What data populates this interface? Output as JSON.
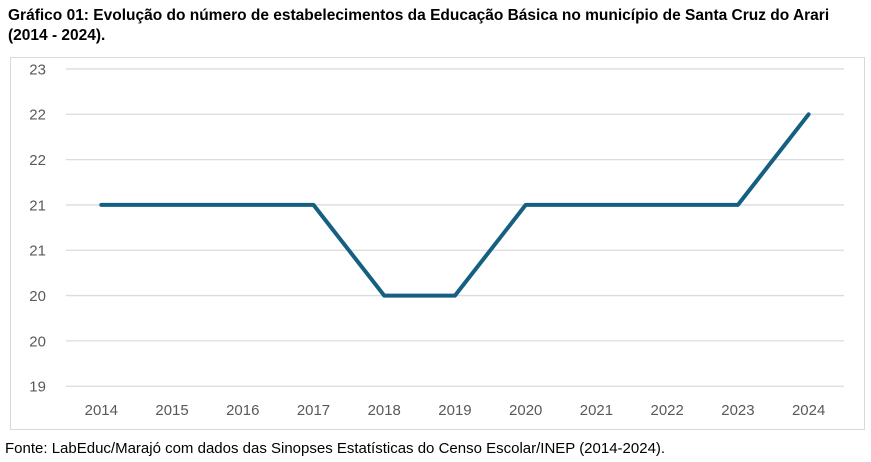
{
  "title": "Gráfico 01: Evolução do número de estabelecimentos da Educação Básica no município de Santa Cruz do Arari (2014 - 2024).",
  "source": "Fonte: LabEduc/Marajó com dados das Sinopses Estatísticas do Censo Escolar/INEP (2014-2024).",
  "colors": {
    "line": "#156082",
    "gridline": "#dcdcdc",
    "axis_text": "#595959",
    "frame_border": "#d9d9d9",
    "title_text": "#000000"
  },
  "chart_data": {
    "type": "line",
    "x": [
      "2014",
      "2015",
      "2016",
      "2017",
      "2018",
      "2019",
      "2020",
      "2021",
      "2022",
      "2023",
      "2024"
    ],
    "values": [
      21,
      21,
      21,
      21,
      20,
      20,
      21,
      21,
      21,
      21,
      22
    ],
    "title": "Gráfico 01: Evolução do número de estabelecimentos da Educação Básica no município de Santa Cruz do Arari (2014 - 2024).",
    "xlabel": "",
    "ylabel": "",
    "ylim": [
      19,
      22.5
    ],
    "ytick_step": 0.5,
    "ytick_labels_top_to_bottom": [
      "23",
      "22",
      "22",
      "21",
      "21",
      "20",
      "20",
      "19"
    ],
    "grid": true,
    "legend": "none"
  }
}
